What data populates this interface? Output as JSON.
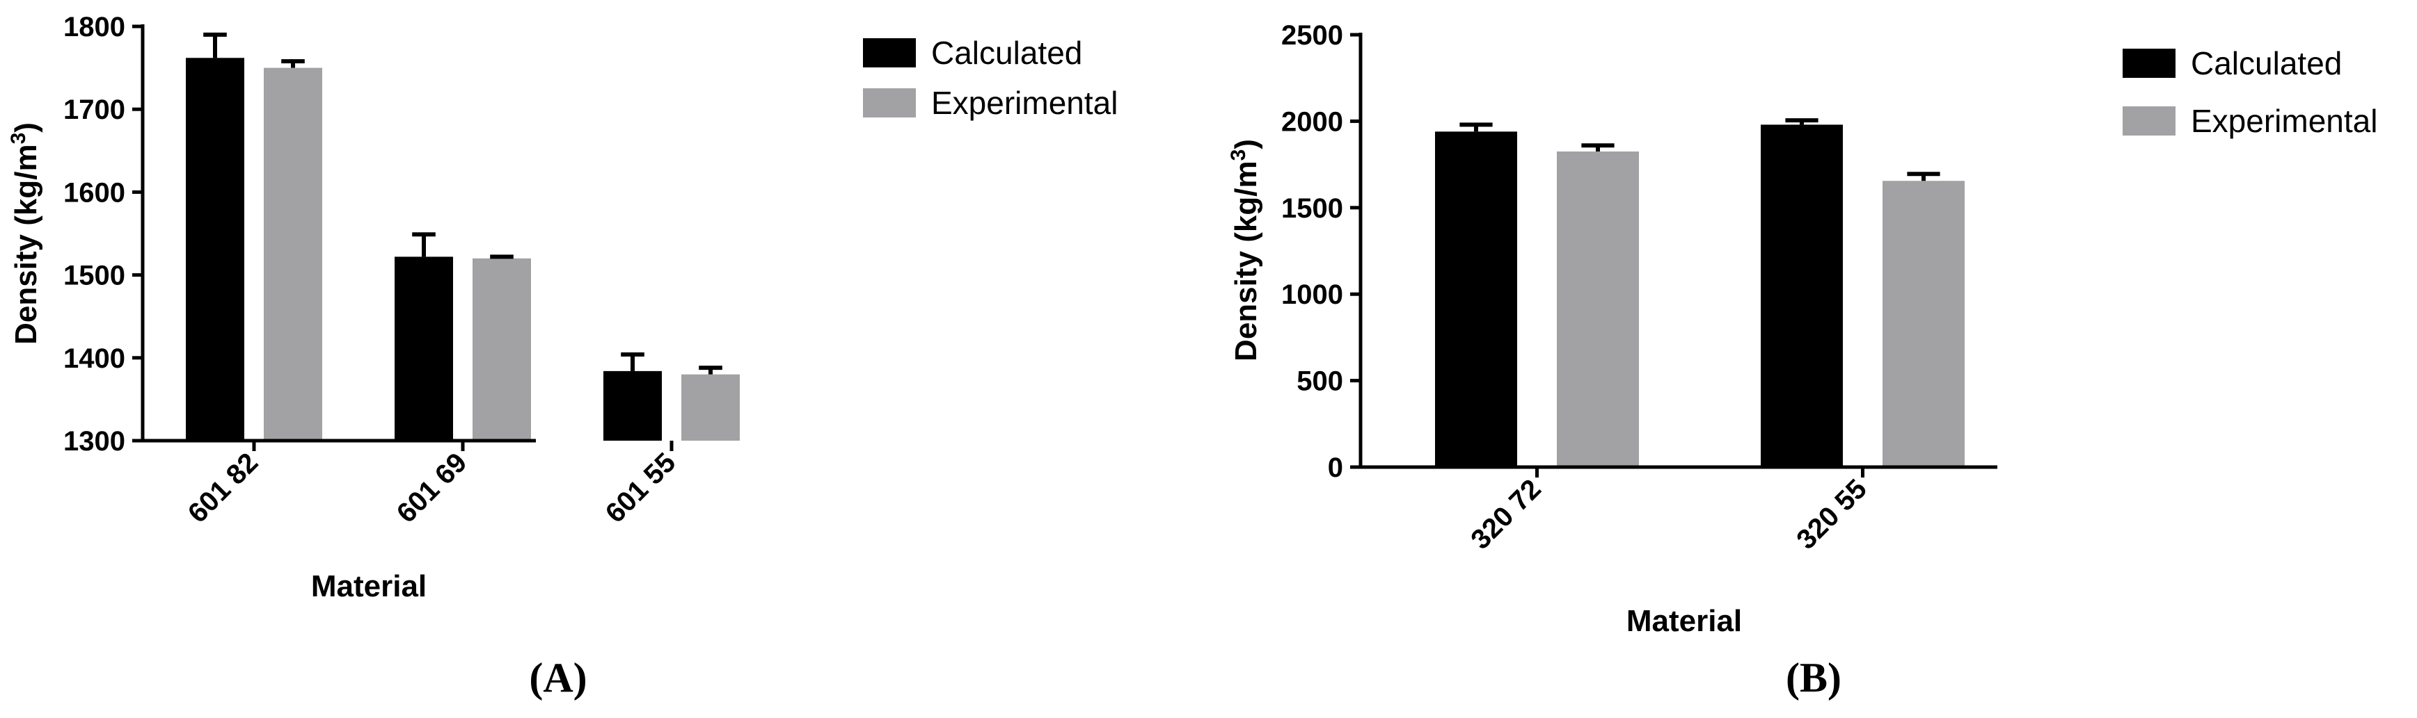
{
  "colors": {
    "calculated": "#000000",
    "experimental": "#a2a2a5",
    "axis": "#000000"
  },
  "chart_data": [
    {
      "type": "bar",
      "panel_label": "(A)",
      "categories": [
        "601 82",
        "601 69",
        "601 55"
      ],
      "series": [
        {
          "name": "Calculated",
          "values": [
            1762,
            1522,
            1384
          ],
          "errors": [
            28,
            27,
            20
          ],
          "color_key": "calculated"
        },
        {
          "name": "Experimental",
          "values": [
            1750,
            1520,
            1380
          ],
          "errors": [
            8,
            2,
            8
          ],
          "color_key": "experimental"
        }
      ],
      "xlabel": "Material",
      "ylabel": "Density (kg/m",
      "ylabel_sup": "3",
      "ylabel_end": ")",
      "ylim": [
        1300,
        1800
      ],
      "yticks": [
        1300,
        1400,
        1500,
        1600,
        1700,
        1800
      ],
      "grid": false,
      "legend_position": "top-right"
    },
    {
      "type": "bar",
      "panel_label": "(B)",
      "categories": [
        "320 72",
        "320 55"
      ],
      "series": [
        {
          "name": "Calculated",
          "values": [
            1940,
            1980
          ],
          "errors": [
            40,
            25
          ],
          "color_key": "calculated"
        },
        {
          "name": "Experimental",
          "values": [
            1825,
            1655
          ],
          "errors": [
            35,
            40
          ],
          "color_key": "experimental"
        }
      ],
      "xlabel": "Material",
      "ylabel": "Density (kg/m",
      "ylabel_sup": "3",
      "ylabel_end": ")",
      "ylim": [
        0,
        2500
      ],
      "yticks": [
        0,
        500,
        1000,
        1500,
        2000,
        2500
      ],
      "grid": false,
      "legend_position": "top-right"
    }
  ]
}
